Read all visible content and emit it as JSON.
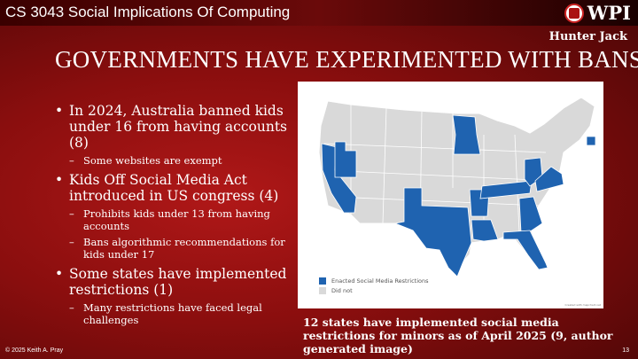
{
  "header": {
    "course": "CS 3043 Social Implications Of Computing",
    "logo_text": "WPI",
    "author": "Hunter Jack"
  },
  "title": "GOVERNMENTS HAVE EXPERIMENTED WITH BANS",
  "bullets": [
    {
      "text": "In 2024, Australia banned kids under 16 from having accounts (8)",
      "sub": [
        "Some websites are exempt"
      ]
    },
    {
      "text": "Kids Off Social Media Act introduced in US congress (4)",
      "sub": [
        "Prohibits kids under 13 from having accounts",
        "Bans algorithmic recommendations for kids under 17"
      ]
    },
    {
      "text": "Some states have implemented restrictions (1)",
      "sub": [
        "Many restrictions have faced legal challenges"
      ]
    }
  ],
  "map": {
    "legend": [
      {
        "label": "Enacted Social Media Restrictions",
        "color": "#1f63b0"
      },
      {
        "label": "Did not",
        "color": "#d9d9d9"
      }
    ],
    "credit": "Created with mapchart.net",
    "enacted_states": [
      "California",
      "Utah",
      "Minnesota",
      "Texas",
      "Arkansas",
      "Louisiana",
      "Tennessee",
      "Georgia",
      "Florida",
      "Ohio",
      "Virginia",
      "Connecticut"
    ]
  },
  "caption": "12 states have implemented social media restrictions for minors as of April 2025 (9, author generated image)",
  "footer": {
    "copyright": "© 2025 Keith A. Pray",
    "page": "13"
  }
}
